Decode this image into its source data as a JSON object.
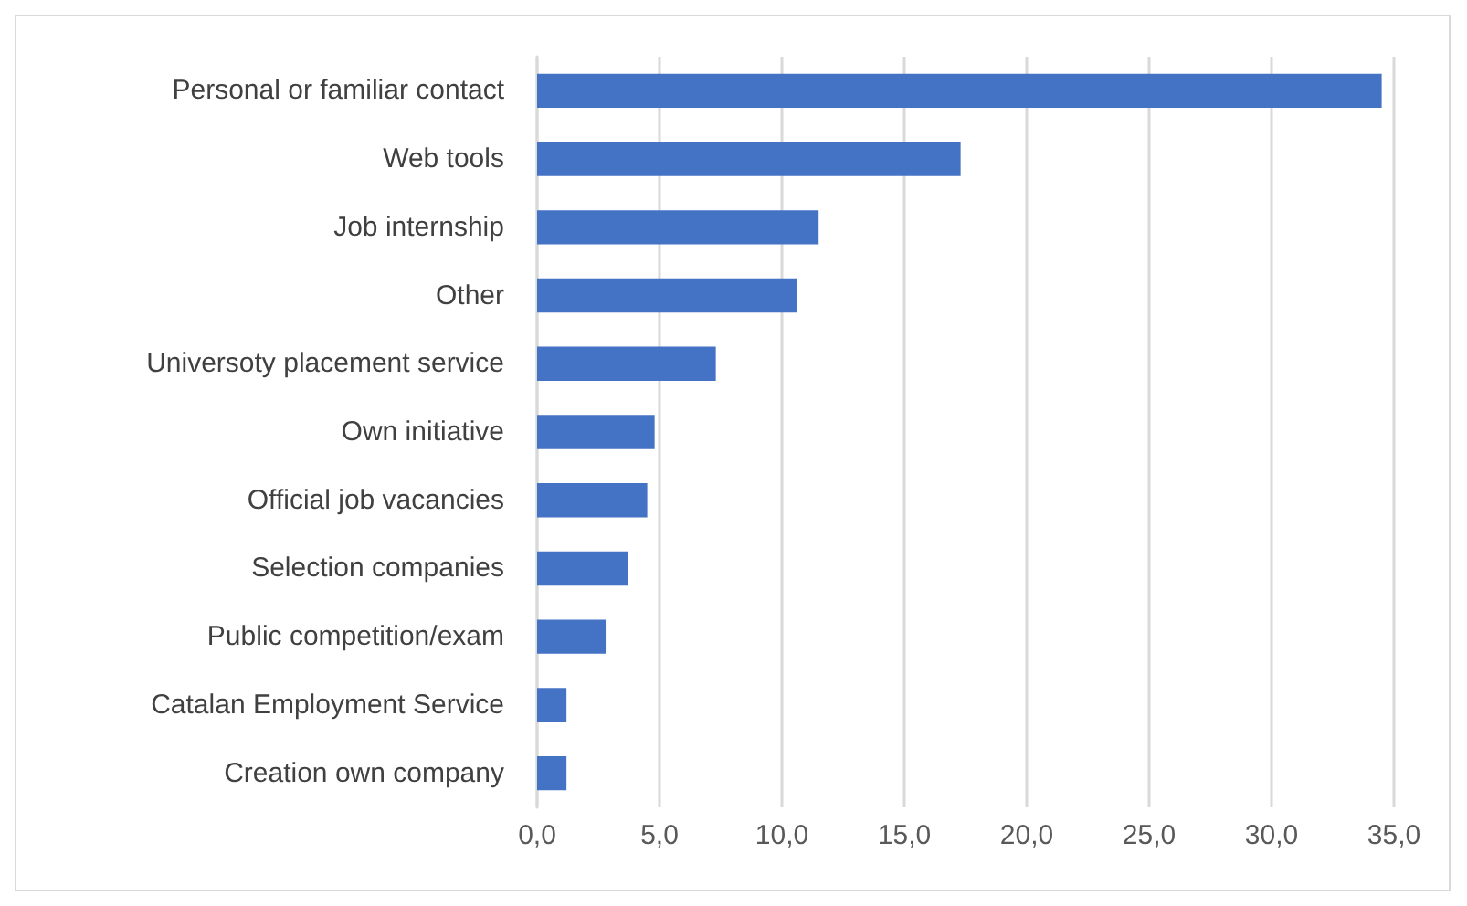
{
  "chart_data": {
    "type": "bar",
    "orientation": "horizontal",
    "categories": [
      "Personal or familiar contact",
      "Web tools",
      "Job internship",
      "Other",
      "Universoty placement service",
      "Own initiative",
      "Official job vacancies",
      "Selection companies",
      "Public competition/exam",
      "Catalan Employment Service",
      "Creation own company"
    ],
    "values": [
      34.5,
      17.3,
      11.5,
      10.6,
      7.3,
      4.8,
      4.5,
      3.7,
      2.8,
      1.2,
      1.2
    ],
    "color": "#4472c4",
    "xlim": [
      0,
      35
    ],
    "xticks": [
      {
        "value": 0,
        "label": "0,0"
      },
      {
        "value": 5,
        "label": "5,0"
      },
      {
        "value": 10,
        "label": "10,0"
      },
      {
        "value": 15,
        "label": "15,0"
      },
      {
        "value": 20,
        "label": "20,0"
      },
      {
        "value": 25,
        "label": "25,0"
      },
      {
        "value": 30,
        "label": "30,0"
      },
      {
        "value": 35,
        "label": "35,0"
      }
    ],
    "grid": "x"
  }
}
